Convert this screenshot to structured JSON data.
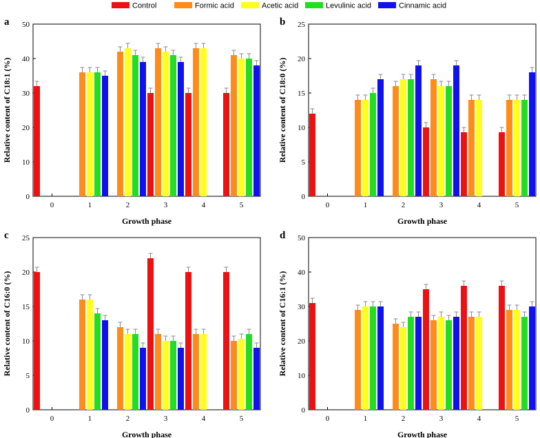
{
  "legend": {
    "series": [
      "Control",
      "Formic acid",
      "Acetic acid",
      "Levulinic acid",
      "Cinnamic acid"
    ],
    "colors": [
      "#ee1111",
      "#ff8c1a",
      "#ffff1a",
      "#22dd22",
      "#1111ee"
    ]
  },
  "chart_data": [
    {
      "panel": "a",
      "type": "bar",
      "categories": [
        "0",
        "1",
        "2",
        "3",
        "4",
        "5"
      ],
      "xlabel": "Growth phase",
      "ylabel": "Relative content of C18:1 (%)",
      "ylim": [
        0,
        50
      ],
      "yticks": [
        0,
        10,
        20,
        30,
        40,
        50
      ],
      "series": [
        {
          "name": "Control",
          "values": [
            32,
            null,
            null,
            30,
            30,
            30
          ]
        },
        {
          "name": "Formic acid",
          "values": [
            null,
            36,
            42,
            43,
            43,
            41
          ]
        },
        {
          "name": "Acetic acid",
          "values": [
            null,
            36,
            43,
            42,
            43,
            40
          ]
        },
        {
          "name": "Levulinic acid",
          "values": [
            null,
            36,
            41,
            41,
            null,
            40
          ]
        },
        {
          "name": "Cinnamic acid",
          "values": [
            null,
            35,
            39,
            39,
            null,
            38
          ]
        }
      ]
    },
    {
      "panel": "b",
      "type": "bar",
      "categories": [
        "0",
        "1",
        "2",
        "3",
        "4",
        "5"
      ],
      "xlabel": "Growth phase",
      "ylabel": "Relative content of C18:0 (%)",
      "ylim": [
        0,
        25
      ],
      "yticks": [
        0,
        5,
        10,
        15,
        20,
        25
      ],
      "series": [
        {
          "name": "Control",
          "values": [
            12,
            null,
            null,
            10,
            9.3,
            9.3
          ]
        },
        {
          "name": "Formic acid",
          "values": [
            null,
            14,
            16,
            17,
            14,
            14
          ]
        },
        {
          "name": "Acetic acid",
          "values": [
            null,
            14,
            17,
            16,
            14,
            14
          ]
        },
        {
          "name": "Levulinic acid",
          "values": [
            null,
            15,
            17,
            16,
            null,
            14
          ]
        },
        {
          "name": "Cinnamic acid",
          "values": [
            null,
            17,
            19,
            19,
            null,
            18
          ]
        }
      ]
    },
    {
      "panel": "c",
      "type": "bar",
      "categories": [
        "0",
        "1",
        "2",
        "3",
        "4",
        "5"
      ],
      "xlabel": "Growth phase",
      "ylabel": "Relative content of C16:0 (%)",
      "ylim": [
        0,
        25
      ],
      "yticks": [
        0,
        5,
        10,
        15,
        20,
        25
      ],
      "series": [
        {
          "name": "Control",
          "values": [
            20,
            null,
            null,
            22,
            20,
            20
          ]
        },
        {
          "name": "Formic acid",
          "values": [
            null,
            16,
            12,
            11,
            11,
            10
          ]
        },
        {
          "name": "Acetic acid",
          "values": [
            null,
            16,
            11,
            10,
            11,
            10.3
          ]
        },
        {
          "name": "Levulinic acid",
          "values": [
            null,
            14,
            11,
            10,
            null,
            11
          ]
        },
        {
          "name": "Cinnamic acid",
          "values": [
            null,
            13,
            9,
            9,
            null,
            9
          ]
        }
      ]
    },
    {
      "panel": "d",
      "type": "bar",
      "categories": [
        "0",
        "1",
        "2",
        "3",
        "4",
        "5"
      ],
      "xlabel": "Growth phase",
      "ylabel": "Relative content of C16:1 (%)",
      "ylim": [
        0,
        50
      ],
      "yticks": [
        0,
        10,
        20,
        30,
        40,
        50
      ],
      "series": [
        {
          "name": "Control",
          "values": [
            31,
            null,
            null,
            35,
            36,
            36
          ]
        },
        {
          "name": "Formic acid",
          "values": [
            null,
            29,
            25,
            26,
            27,
            29
          ]
        },
        {
          "name": "Acetic acid",
          "values": [
            null,
            30,
            24,
            27,
            27,
            29
          ]
        },
        {
          "name": "Levulinic acid",
          "values": [
            null,
            30,
            27,
            26,
            null,
            27
          ]
        },
        {
          "name": "Cinnamic acid",
          "values": [
            null,
            30,
            27,
            27,
            null,
            30
          ]
        }
      ]
    }
  ]
}
